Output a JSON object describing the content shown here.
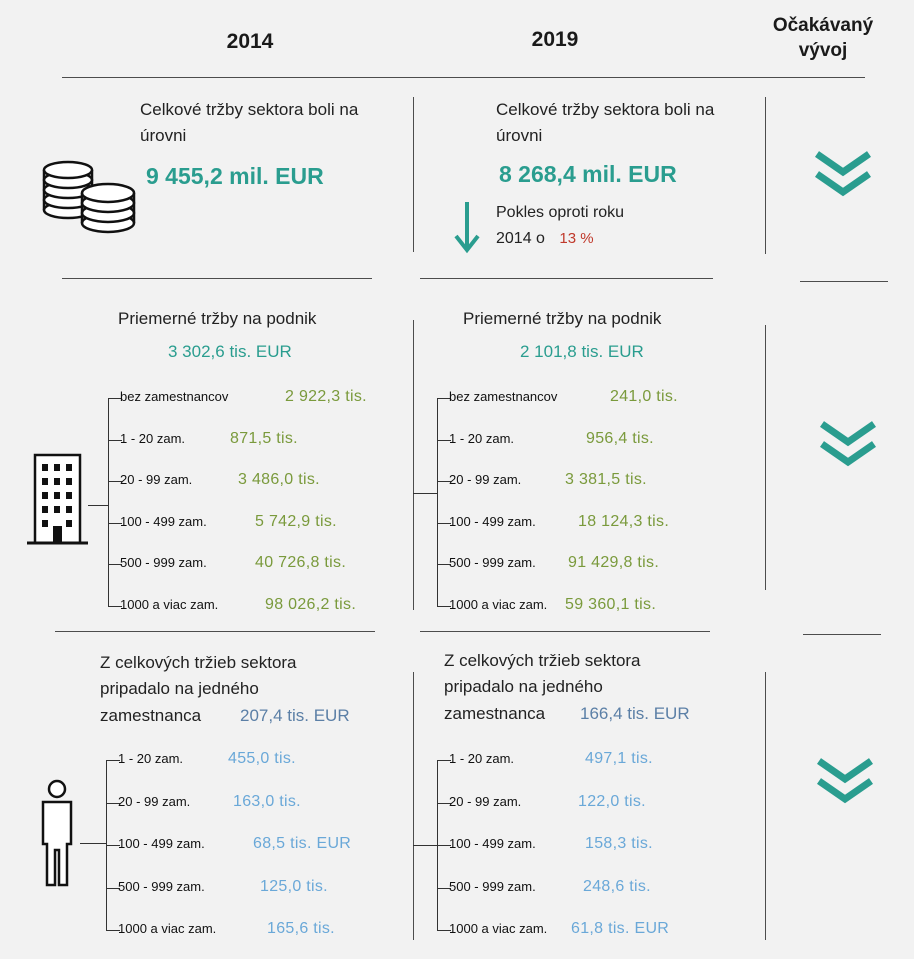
{
  "headers": {
    "y2014": "2014",
    "y2019": "2019",
    "expected": "Očakávaný vývoj"
  },
  "revenue": {
    "label_2014": "Celkové tržby sektora boli na úrovni",
    "value_2014": "9 455,2 mil. EUR",
    "label_2019": "Celkové tržby sektora boli na úrovni",
    "value_2019": "8 268,4 mil. EUR",
    "decline_line1": "Pokles oproti roku",
    "decline_line2": "2014  o",
    "decline_pct": "13 %"
  },
  "avg_per_firm": {
    "label": "Priemerné tržby na podnik",
    "total_2014": "3 302,6 tis. EUR",
    "total_2019": "2 101,8 tis. EUR",
    "rows_2014": [
      {
        "cat": "bez zamestnancov",
        "val": "2 922,3 tis."
      },
      {
        "cat": "1 - 20 zam.",
        "val": "871,5 tis."
      },
      {
        "cat": "20 - 99 zam.",
        "val": "3 486,0 tis."
      },
      {
        "cat": "100 - 499 zam.",
        "val": "5 742,9 tis."
      },
      {
        "cat": "500 - 999 zam.",
        "val": "40 726,8 tis."
      },
      {
        "cat": "1000 a viac zam.",
        "val": "98 026,2 tis."
      }
    ],
    "rows_2019": [
      {
        "cat": "bez zamestnancov",
        "val": "241,0 tis."
      },
      {
        "cat": "1 - 20 zam.",
        "val": "956,4 tis."
      },
      {
        "cat": "20 - 99 zam.",
        "val": "3 381,5 tis."
      },
      {
        "cat": "100 - 499 zam.",
        "val": "18 124,3 tis."
      },
      {
        "cat": "500 - 999 zam.",
        "val": "91 429,8 tis."
      },
      {
        "cat": "1000 a viac zam.",
        "val": "59 360,1 tis."
      }
    ]
  },
  "per_employee": {
    "label_line1": "Z celkových tržieb sektora",
    "label_line2": "pripadalo na jedného",
    "label_line3": "zamestnanca",
    "total_2014": "207,4 tis. EUR",
    "total_2019": "166,4 tis. EUR",
    "rows_2014": [
      {
        "cat": "1 - 20 zam.",
        "val": "455,0 tis."
      },
      {
        "cat": "20 - 99 zam.",
        "val": "163,0 tis."
      },
      {
        "cat": "100 - 499 zam.",
        "val": "68,5 tis. EUR"
      },
      {
        "cat": "500 - 999 zam.",
        "val": "125,0 tis."
      },
      {
        "cat": "1000 a viac zam.",
        "val": "165,6 tis."
      }
    ],
    "rows_2019": [
      {
        "cat": "1 - 20 zam.",
        "val": "497,1 tis."
      },
      {
        "cat": "20 - 99 zam.",
        "val": "122,0 tis."
      },
      {
        "cat": "100 - 499 zam.",
        "val": "158,3 tis."
      },
      {
        "cat": "500 - 999 zam.",
        "val": "248,6 tis."
      },
      {
        "cat": "1000 a viac zam.",
        "val": "61,8 tis. EUR"
      }
    ]
  },
  "icons": [
    "coins-icon",
    "building-icon",
    "person-icon",
    "down-arrow-icon",
    "double-chevron-down-icon"
  ],
  "colors": {
    "teal": "#2a9d8f",
    "green": "#7a9a3c",
    "light_blue": "#6aa8d8",
    "steel_blue": "#5b7fa6",
    "red": "#c0392b"
  }
}
